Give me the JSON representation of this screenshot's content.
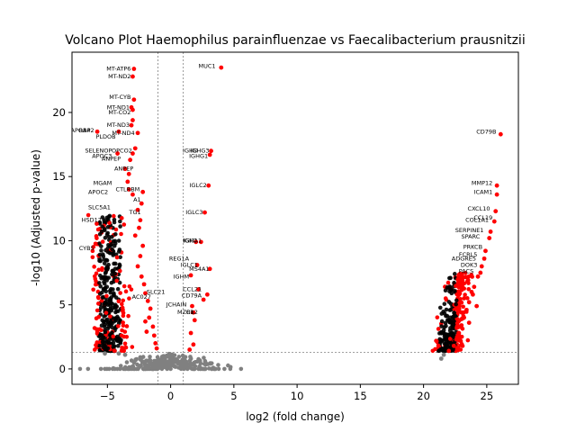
{
  "chart_data": {
    "type": "scatter",
    "title": "Volcano Plot Haemophilus parainfluenzae vs Faecalibacterium prausnitzii",
    "xlabel": "log2 (fold change)",
    "ylabel": "-log10 (Adjusted p-value)",
    "xlim": [
      -7.8,
      27.5
    ],
    "ylim": [
      -1.2,
      24.7
    ],
    "xticks": [
      -5,
      0,
      5,
      10,
      15,
      20,
      25
    ],
    "yticks": [
      0,
      5,
      10,
      15,
      20
    ],
    "x_thresholds": [
      -1,
      1
    ],
    "y_threshold": 1.3,
    "colors": {
      "significant": "#ff0000",
      "not_significant": "#808080",
      "threshold_line": "#808080"
    },
    "series": [
      {
        "label": "significant",
        "points": [
          [
            -2.9,
            23.4
          ],
          [
            -3.0,
            22.8
          ],
          [
            -2.9,
            21.0
          ],
          [
            -3.0,
            20.2
          ],
          [
            -3.1,
            20.4
          ],
          [
            -3.0,
            19.4
          ],
          [
            -3.1,
            19.0
          ],
          [
            -2.6,
            18.4
          ],
          [
            -5.8,
            18.5
          ],
          [
            -4.1,
            18.5
          ],
          [
            -2.8,
            17.2
          ],
          [
            -3.0,
            16.8
          ],
          [
            -4.2,
            16.8
          ],
          [
            -3.2,
            16.3
          ],
          [
            -3.6,
            15.6
          ],
          [
            -3.3,
            15.2
          ],
          [
            -3.4,
            14.6
          ],
          [
            -3.3,
            14.0
          ],
          [
            -3.0,
            13.6
          ],
          [
            -2.2,
            13.8
          ],
          [
            -2.3,
            12.9
          ],
          [
            -2.6,
            12.4
          ],
          [
            -2.4,
            11.6
          ],
          [
            -2.5,
            11.0
          ],
          [
            -2.8,
            10.4
          ],
          [
            -2.2,
            9.6
          ],
          [
            -2.4,
            8.8
          ],
          [
            -2.6,
            8.0
          ],
          [
            -2.3,
            7.2
          ],
          [
            -2.1,
            6.6
          ],
          [
            -2.0,
            5.9
          ],
          [
            -1.8,
            5.3
          ],
          [
            -1.6,
            4.7
          ],
          [
            -1.7,
            4.0
          ],
          [
            -1.4,
            3.3
          ],
          [
            -1.3,
            2.6
          ],
          [
            -1.2,
            2.0
          ],
          [
            -1.1,
            1.6
          ],
          [
            -2.0,
            3.7
          ],
          [
            -1.9,
            2.9
          ],
          [
            4.0,
            23.5
          ],
          [
            3.2,
            17.0
          ],
          [
            3.1,
            16.7
          ],
          [
            3.0,
            14.3
          ],
          [
            2.7,
            12.2
          ],
          [
            2.4,
            9.9
          ],
          [
            2.0,
            9.9
          ],
          [
            2.1,
            8.1
          ],
          [
            3.1,
            7.8
          ],
          [
            1.6,
            7.3
          ],
          [
            2.2,
            6.2
          ],
          [
            2.9,
            5.8
          ],
          [
            2.6,
            5.4
          ],
          [
            1.8,
            4.4
          ],
          [
            1.9,
            3.8
          ],
          [
            1.6,
            2.8
          ],
          [
            1.8,
            1.9
          ],
          [
            1.5,
            1.5
          ],
          [
            1.7,
            4.9
          ],
          [
            26.1,
            18.3
          ],
          [
            25.8,
            14.3
          ],
          [
            25.8,
            13.6
          ],
          [
            25.7,
            12.3
          ],
          [
            25.6,
            11.5
          ],
          [
            25.3,
            10.7
          ],
          [
            25.2,
            10.2
          ],
          [
            24.9,
            9.2
          ],
          [
            24.8,
            8.6
          ],
          [
            24.6,
            8.0
          ],
          [
            24.3,
            7.2
          ],
          [
            24.0,
            6.4
          ],
          [
            23.9,
            5.8
          ],
          [
            23.6,
            5.2
          ],
          [
            23.4,
            4.6
          ],
          [
            23.2,
            4.0
          ],
          [
            23.0,
            3.4
          ],
          [
            22.8,
            2.8
          ],
          [
            22.6,
            2.3
          ],
          [
            22.4,
            1.8
          ],
          [
            22.0,
            1.4
          ],
          [
            24.5,
            7.5
          ],
          [
            23.8,
            6.0
          ],
          [
            24.2,
            4.9
          ],
          [
            23.6,
            3.6
          ]
        ]
      },
      {
        "label": "not significant",
        "points": [
          [
            -0.2,
            0.1
          ],
          [
            0.3,
            0.2
          ],
          [
            0.7,
            0.5
          ],
          [
            -0.8,
            0.6
          ],
          [
            1.1,
            0.4
          ],
          [
            -1.5,
            0.4
          ],
          [
            -2.4,
            0.9
          ],
          [
            -3.6,
            1.1
          ],
          [
            -4.1,
            1.2
          ],
          [
            -5.2,
            1.2
          ],
          [
            1.6,
            0.8
          ],
          [
            -2.9,
            0.5
          ],
          [
            0.1,
            0.9
          ],
          [
            21.4,
            0.8
          ],
          [
            21.6,
            1.1
          ]
        ]
      }
    ],
    "dense_clusters": [
      {
        "x_center": -4.8,
        "x_spread": 1.1,
        "y_min": 1.4,
        "y_max": 12.0,
        "count": 420
      },
      {
        "x_center": 21.9,
        "x_spread": 0.9,
        "y_min": 1.4,
        "y_max": 7.5,
        "count": 320
      }
    ],
    "gray_cloud": {
      "x_center": 0.0,
      "x_spread": 5.0,
      "y_max": 1.3,
      "count": 260
    },
    "annotations": [
      {
        "text": "MT-ATP6",
        "x": -3.0,
        "y": 23.4
      },
      {
        "text": "MT-ND2",
        "x": -3.0,
        "y": 22.8
      },
      {
        "text": "MT-CYB",
        "x": -3.0,
        "y": 21.2
      },
      {
        "text": "MT-ND1",
        "x": -3.1,
        "y": 20.4
      },
      {
        "text": "MT-CO2",
        "x": -3.0,
        "y": 20.0
      },
      {
        "text": "MT-ND3",
        "x": -3.1,
        "y": 19.0
      },
      {
        "text": "MT-ND4",
        "x": -2.7,
        "y": 18.4
      },
      {
        "text": "APOA4",
        "x": -6.2,
        "y": 18.6
      },
      {
        "text": "RBP2",
        "x": -5.9,
        "y": 18.6
      },
      {
        "text": "PLDOB",
        "x": -4.2,
        "y": 18.1
      },
      {
        "text": "SELENOP",
        "x": -4.5,
        "y": 17.0
      },
      {
        "text": "APOC3",
        "x": -4.5,
        "y": 16.6
      },
      {
        "text": "OPCO2",
        "x": -2.9,
        "y": 17.0
      },
      {
        "text": "ANPEP",
        "x": -3.8,
        "y": 16.4
      },
      {
        "text": "ANPEP",
        "x": -2.8,
        "y": 15.6
      },
      {
        "text": "MGAM",
        "x": -4.5,
        "y": 14.5
      },
      {
        "text": "APOC2",
        "x": -4.8,
        "y": 13.8
      },
      {
        "text": "SLC5A1",
        "x": -4.6,
        "y": 12.6
      },
      {
        "text": "HSD17B2",
        "x": -4.7,
        "y": 11.6
      },
      {
        "text": "CYB5",
        "x": -5.9,
        "y": 9.4
      },
      {
        "text": "A1",
        "x": -2.2,
        "y": 13.2
      },
      {
        "text": "TG1",
        "x": -2.2,
        "y": 12.2
      },
      {
        "text": "CTLRBM",
        "x": -2.3,
        "y": 14.0
      },
      {
        "text": "MUC1",
        "x": 3.7,
        "y": 23.6
      },
      {
        "text": "IGHG3",
        "x": 3.2,
        "y": 17.0
      },
      {
        "text": "IGHD",
        "x": 2.3,
        "y": 17.0
      },
      {
        "text": "IGHG1",
        "x": 3.1,
        "y": 16.6
      },
      {
        "text": "IGLC2",
        "x": 3.0,
        "y": 14.3
      },
      {
        "text": "IGLC3",
        "x": 2.7,
        "y": 12.2
      },
      {
        "text": "IGKC",
        "x": 2.2,
        "y": 10.0
      },
      {
        "text": "IGHA1",
        "x": 2.6,
        "y": 10.0
      },
      {
        "text": "REG1A",
        "x": 1.6,
        "y": 8.6
      },
      {
        "text": "IGLC1",
        "x": 2.3,
        "y": 8.1
      },
      {
        "text": "MS4A1",
        "x": 3.2,
        "y": 7.8
      },
      {
        "text": "IGHM",
        "x": 1.6,
        "y": 7.2
      },
      {
        "text": "CCL21",
        "x": 2.6,
        "y": 6.2
      },
      {
        "text": "CD79A",
        "x": 2.6,
        "y": 5.7
      },
      {
        "text": "JCHAIN",
        "x": 1.4,
        "y": 5.0
      },
      {
        "text": "MZB1",
        "x": 2.0,
        "y": 4.4
      },
      {
        "text": "CR2",
        "x": 2.3,
        "y": 4.4
      },
      {
        "text": "SLC21",
        "x": -0.3,
        "y": 6.0
      },
      {
        "text": "AC027",
        "x": -1.4,
        "y": 5.6
      },
      {
        "text": "CD79B",
        "x": 25.9,
        "y": 18.5
      },
      {
        "text": "MMP12",
        "x": 25.6,
        "y": 14.5
      },
      {
        "text": "ICAM1",
        "x": 25.6,
        "y": 13.8
      },
      {
        "text": "CXCL10",
        "x": 25.4,
        "y": 12.5
      },
      {
        "text": "COL1A1",
        "x": 25.3,
        "y": 11.6
      },
      {
        "text": "CCL19",
        "x": 25.6,
        "y": 11.8
      },
      {
        "text": "SERPINE1",
        "x": 24.9,
        "y": 10.8
      },
      {
        "text": "SPARC",
        "x": 24.6,
        "y": 10.3
      },
      {
        "text": "PRKCB",
        "x": 24.8,
        "y": 9.5
      },
      {
        "text": "FCRL5",
        "x": 24.4,
        "y": 8.9
      },
      {
        "text": "ADGRE5",
        "x": 24.3,
        "y": 8.6
      },
      {
        "text": "DOK3",
        "x": 24.4,
        "y": 8.1
      },
      {
        "text": "PACS",
        "x": 24.1,
        "y": 7.6
      }
    ]
  }
}
